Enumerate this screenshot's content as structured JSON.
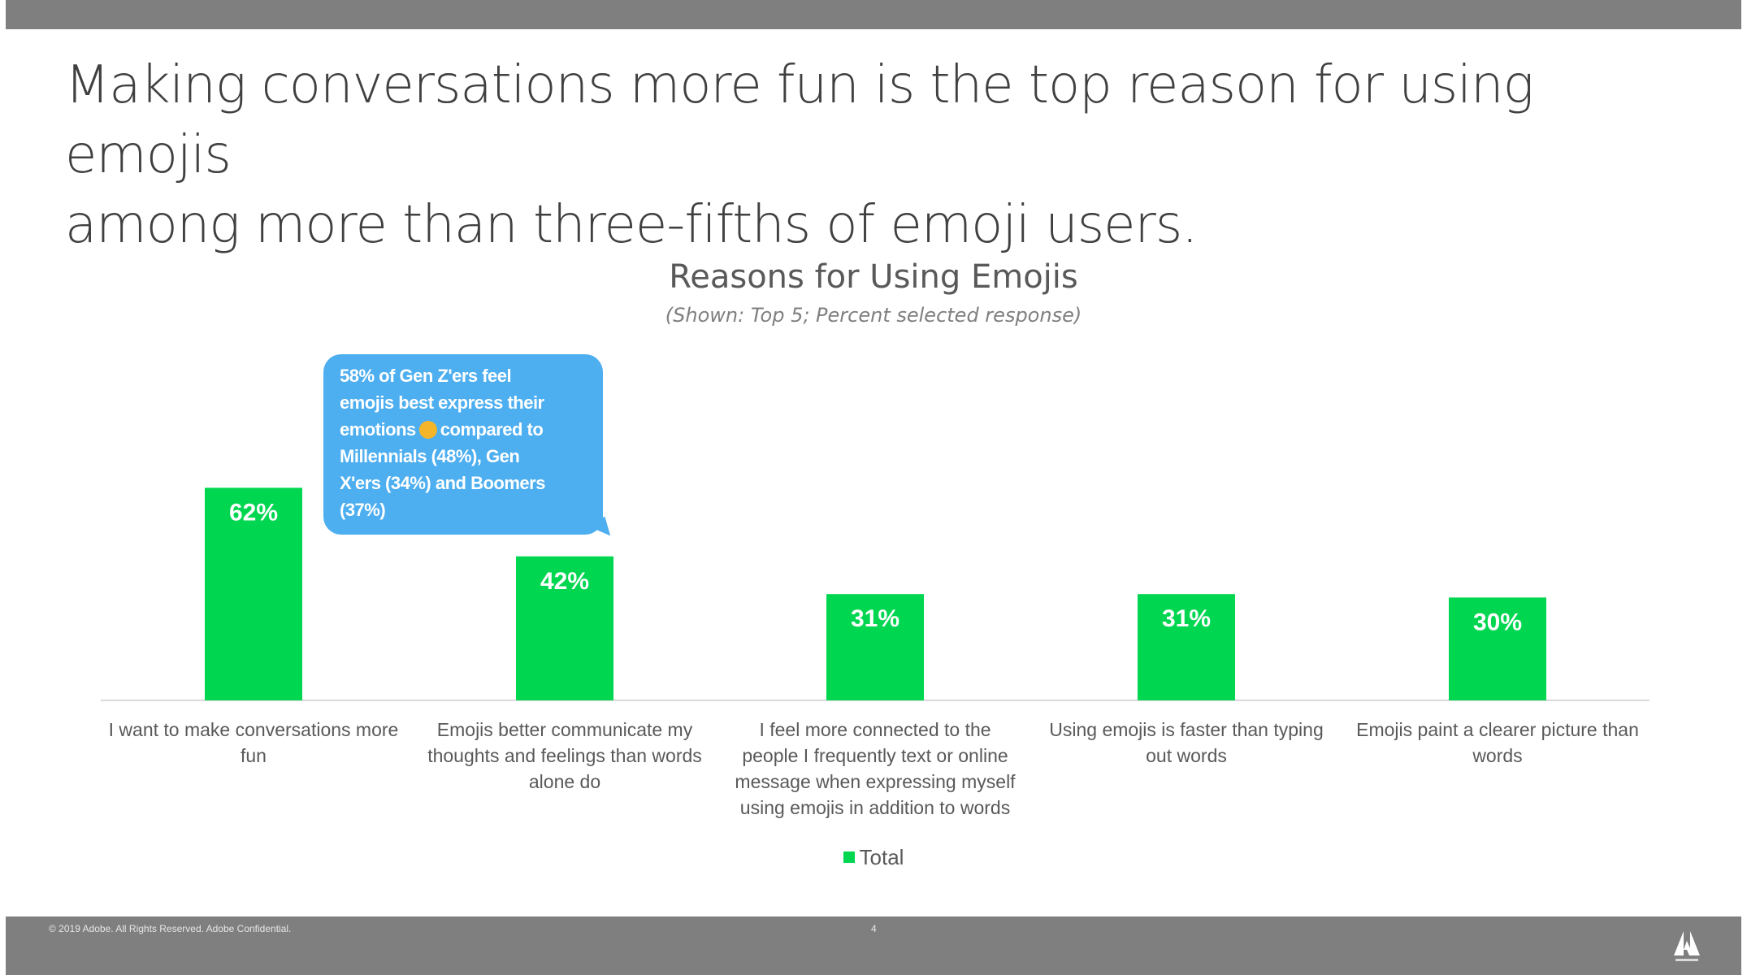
{
  "slide": {
    "title_line1": "Making conversations more fun is the top reason for using emojis",
    "title_line2": "among more than three-fifths of emoji users."
  },
  "chart_data": {
    "type": "bar",
    "title": "Reasons for Using Emojis",
    "subtitle": "(Shown: Top 5; Percent selected response)",
    "categories": [
      "I want to make conversations more fun",
      "Emojis better communicate my thoughts and feelings than words alone do",
      "I feel more connected to the people I frequently text or online message when expressing myself using emojis in addition to words",
      "Using emojis is faster than typing out words",
      "Emojis paint a clearer picture than words"
    ],
    "category_lines": [
      [
        "I want to make conversations more",
        "fun"
      ],
      [
        "Emojis better communicate my",
        "thoughts and feelings than words",
        "alone do"
      ],
      [
        "I feel more connected to the",
        "people I frequently text or online",
        "message when expressing myself",
        "using emojis in addition to words"
      ],
      [
        "Using emojis is faster than typing",
        "out words"
      ],
      [
        "Emojis paint a clearer picture than",
        "words"
      ]
    ],
    "series": [
      {
        "name": "Total",
        "values": [
          62,
          42,
          31,
          31,
          30
        ],
        "color": "#00d64f"
      }
    ],
    "data_labels": [
      "62%",
      "42%",
      "31%",
      "31%",
      "30%"
    ],
    "ylim": [
      0,
      100
    ],
    "grid": false,
    "legend": "bottom-center"
  },
  "callout": {
    "line1": "58% of Gen Z'ers feel",
    "line2": "emojis best express their",
    "line3a": "emotions",
    "line3b": "compared to",
    "line4": "Millennials (48%), Gen",
    "line5": "X'ers (34%) and Boomers",
    "line6": "(37%)",
    "color": "#4daef0",
    "icon": "emoji-face-icon"
  },
  "footer": {
    "copyright": "© 2019 Adobe. All Rights Reserved. Adobe Confidential.",
    "page_number": "4",
    "logo": "adobe-logo-icon"
  },
  "colors": {
    "bar_bars": "#7f7f7f",
    "title_text": "#404040",
    "bar_fill": "#00d64f"
  }
}
